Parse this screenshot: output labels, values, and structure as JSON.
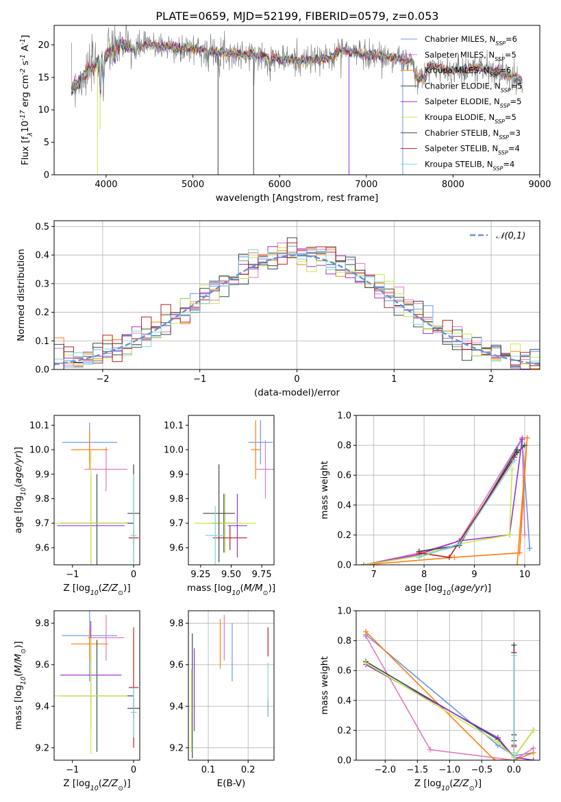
{
  "title": "PLATE=0659, MJD=52199, FIBERID=0579, z=0.053",
  "colors": [
    "#6495ed",
    "#e377c2",
    "#ff7f0e",
    "#2f4f4f",
    "#9932cc",
    "#c8e64c",
    "#404040",
    "#b22222",
    "#7dd4dc"
  ],
  "series_names": [
    "Chabrier MILES, N$_{SSP}$=6",
    "Salpeter MILES, N$_{SSP}$=5",
    "Kroupa MILES, N$_{SSP}$=6",
    "Chabrier ELODIE, N$_{SSP}$=5",
    "Salpeter ELODIE, N$_{SSP}$=5",
    "Kroupa ELODIE, N$_{SSP}$=5",
    "Chabrier STELIB, N$_{SSP}$=3",
    "Salpeter STELIB, N$_{SSP}$=4",
    "Kroupa STELIB, N$_{SSP}$=4"
  ],
  "chart_data": [
    {
      "id": "spectrum",
      "type": "line",
      "xlabel": "wavelength [Angstrom, rest frame]",
      "ylabel": "Flux [f$_\\lambda$10$^{-17}$ erg cm$^{-2}$ s$^{-1}$ A$^{-1}$]",
      "xlim": [
        3400,
        9000
      ],
      "ylim": [
        0,
        23
      ],
      "xticks": [
        4000,
        5000,
        6000,
        7000,
        8000,
        9000
      ],
      "yticks": [
        0,
        5,
        10,
        15,
        20
      ],
      "grid": false,
      "legend": "right",
      "data_range": [
        3600,
        8800
      ],
      "continuum": [
        [
          3600,
          13.5
        ],
        [
          3700,
          14.5
        ],
        [
          3800,
          16
        ],
        [
          3900,
          17.5
        ],
        [
          4000,
          18.5
        ],
        [
          4100,
          19.5
        ],
        [
          4200,
          20
        ],
        [
          4300,
          19.5
        ],
        [
          4400,
          19.8
        ],
        [
          4500,
          20
        ],
        [
          4700,
          19.7
        ],
        [
          5000,
          19.5
        ],
        [
          5200,
          19
        ],
        [
          5500,
          18.6
        ],
        [
          5800,
          18.3
        ],
        [
          6000,
          17.8
        ],
        [
          6300,
          17.5
        ],
        [
          6600,
          18
        ],
        [
          6700,
          19.3
        ],
        [
          6800,
          19
        ],
        [
          7000,
          18.6
        ],
        [
          7400,
          17.8
        ],
        [
          7600,
          17
        ],
        [
          8000,
          16
        ],
        [
          8300,
          16.5
        ],
        [
          8600,
          15.5
        ],
        [
          8800,
          14.5
        ]
      ],
      "absorption": [
        [
          3933,
          6
        ],
        [
          3968,
          5
        ],
        [
          4101,
          2
        ],
        [
          4340,
          2
        ],
        [
          4861,
          1.5
        ],
        [
          5175,
          2
        ],
        [
          5890,
          2
        ]
      ],
      "glitches": [
        [
          3900,
          0,
          5
        ],
        [
          3930,
          7,
          5
        ],
        [
          5290,
          0,
          6
        ],
        [
          5700,
          0,
          6
        ],
        [
          6800,
          0,
          4
        ],
        [
          7420,
          0,
          0
        ]
      ]
    },
    {
      "id": "residuals",
      "type": "histogram",
      "xlabel": "(data-model)/error",
      "ylabel": "Normed distribution",
      "xlim": [
        -2.5,
        2.5
      ],
      "ylim": [
        0,
        0.52
      ],
      "xticks": [
        -2,
        -1,
        0,
        1,
        2
      ],
      "yticks": [
        0.0,
        0.1,
        0.2,
        0.3,
        0.4,
        0.5
      ],
      "grid": true,
      "legend": "top-right",
      "bin_width": 0.1,
      "normal_label": "$\\mathcal{N}(0,1)$",
      "normal_color": "#6a8fd6"
    },
    {
      "id": "z-age",
      "type": "errorbar",
      "xlabel": "Z [log$_{10}$($Z/Z_\\odot$)]",
      "ylabel": "age  [log$_{10}$($age/yr$)]",
      "xlim": [
        -1.3,
        0.1
      ],
      "ylim": [
        9.53,
        10.14
      ],
      "xticks": [
        -1,
        0
      ],
      "yticks": [
        9.6,
        9.7,
        9.8,
        9.9,
        10.0,
        10.1
      ],
      "grid": false,
      "points": [
        [
          -0.72,
          10.03,
          0.45,
          0.08
        ],
        [
          -0.45,
          9.92,
          0.35,
          0.09
        ],
        [
          -0.72,
          10.0,
          0.3,
          0.08
        ],
        [
          -0.6,
          9.7,
          0.6,
          0.2
        ],
        [
          -0.7,
          9.69,
          0.55,
          0.2
        ],
        [
          -0.7,
          9.7,
          0.6,
          0.3
        ],
        [
          0.0,
          9.74,
          0.1,
          0.2
        ],
        [
          0.0,
          9.64,
          0.08,
          0.03
        ],
        [
          0.0,
          9.65,
          0.05,
          0.25
        ]
      ]
    },
    {
      "id": "mass-age",
      "type": "errorbar",
      "xlabel": "mass [log$_{10}$($M/M_\\odot$)]",
      "ylabel": "",
      "xlim": [
        9.15,
        9.85
      ],
      "ylim": [
        9.53,
        10.14
      ],
      "xticks": [
        9.25,
        9.5,
        9.75
      ],
      "yticks": [
        9.6,
        9.7,
        9.8,
        9.9,
        10.0,
        10.1
      ],
      "grid": false,
      "points": [
        [
          9.74,
          10.03,
          0.1,
          0.09
        ],
        [
          9.78,
          9.92,
          0.08,
          0.12
        ],
        [
          9.7,
          10.0,
          0.04,
          0.12
        ],
        [
          9.44,
          9.7,
          0.1,
          0.12
        ],
        [
          9.55,
          9.69,
          0.08,
          0.13
        ],
        [
          9.45,
          9.7,
          0.25,
          0.12
        ],
        [
          9.4,
          9.74,
          0.13,
          0.2
        ],
        [
          9.49,
          9.64,
          0.14,
          0.05
        ],
        [
          9.37,
          9.65,
          0.08,
          0.12
        ]
      ]
    },
    {
      "id": "age-weight",
      "type": "line",
      "xlabel": "age  [log$_{10}$($age/yr$)]",
      "ylabel": "mass weight",
      "xlim": [
        6.65,
        10.3
      ],
      "ylim": [
        0,
        1.0
      ],
      "xticks": [
        7,
        8,
        9,
        10
      ],
      "yticks": [
        0.0,
        0.2,
        0.4,
        0.6,
        0.8,
        1.0
      ],
      "grid": true,
      "series": [
        [
          [
            6.8,
            0.0
          ],
          [
            7.9,
            0.06
          ],
          [
            8.7,
            0.13
          ],
          [
            9.95,
            0.84
          ],
          [
            10.1,
            0.11
          ]
        ],
        [
          [
            6.8,
            0.0
          ],
          [
            7.9,
            0.08
          ],
          [
            8.7,
            0.16
          ],
          [
            9.95,
            0.85
          ],
          [
            10.0,
            0.2
          ]
        ],
        [
          [
            6.8,
            0.0
          ],
          [
            8.6,
            0.05
          ],
          [
            9.9,
            0.08
          ],
          [
            10.05,
            0.85
          ],
          [
            9.85,
            0.0
          ]
        ],
        [
          [
            6.8,
            0.0
          ],
          [
            7.9,
            0.06
          ],
          [
            8.7,
            0.14
          ],
          [
            9.85,
            0.75
          ],
          [
            10.0,
            0.8
          ]
        ],
        [
          [
            6.8,
            0.0
          ],
          [
            7.9,
            0.07
          ],
          [
            8.7,
            0.16
          ],
          [
            9.7,
            0.2
          ],
          [
            9.95,
            0.84
          ]
        ],
        [
          [
            6.8,
            0.0
          ],
          [
            7.9,
            0.06
          ],
          [
            8.7,
            0.14
          ],
          [
            9.7,
            0.2
          ],
          [
            9.75,
            0.64
          ]
        ],
        [
          [
            7.9,
            0.09
          ],
          [
            8.7,
            0.13
          ],
          [
            9.85,
            0.77
          ]
        ],
        [
          [
            7.9,
            0.08
          ],
          [
            8.5,
            0.05
          ],
          [
            9.8,
            0.72
          ]
        ],
        [
          [
            7.9,
            0.05
          ],
          [
            8.7,
            0.14
          ],
          [
            9.8,
            0.7
          ]
        ]
      ]
    },
    {
      "id": "z-mass",
      "type": "errorbar",
      "xlabel": "Z [log$_{10}$($Z/Z_\\odot$)]",
      "ylabel": "mass [log$_{10}$($M/M_\\odot$)]",
      "xlim": [
        -1.3,
        0.1
      ],
      "ylim": [
        9.14,
        9.86
      ],
      "xticks": [
        -1,
        0
      ],
      "yticks": [
        9.2,
        9.4,
        9.6,
        9.8
      ],
      "grid": false,
      "points": [
        [
          -0.72,
          9.74,
          0.45,
          0.22
        ],
        [
          -0.45,
          9.73,
          0.3,
          0.11
        ],
        [
          -0.72,
          9.7,
          0.3,
          0.08
        ],
        [
          -0.6,
          9.45,
          0.6,
          0.27
        ],
        [
          -0.7,
          9.55,
          0.5,
          0.26
        ],
        [
          -0.7,
          9.45,
          0.6,
          0.28
        ],
        [
          0.0,
          9.39,
          0.1,
          0.05
        ],
        [
          0.0,
          9.49,
          0.08,
          0.29
        ],
        [
          0.0,
          9.37,
          0.05,
          0.12
        ]
      ]
    },
    {
      "id": "ebv-mass",
      "type": "errorbar",
      "xlabel": "E(B-V)",
      "ylabel": "",
      "xlim": [
        0.05,
        0.265
      ],
      "ylim": [
        9.14,
        9.86
      ],
      "xticks": [
        0.1,
        0.2
      ],
      "yticks": [
        9.2,
        9.4,
        9.6,
        9.8
      ],
      "grid": true,
      "points": [
        [
          0.16,
          9.66,
          0,
          0.14
        ],
        [
          0.14,
          9.73,
          0,
          0.11
        ],
        [
          0.13,
          9.7,
          0,
          0.12
        ],
        [
          0.06,
          9.45,
          0,
          0.3
        ],
        [
          0.065,
          9.48,
          0,
          0.2
        ],
        [
          0.058,
          9.38,
          0,
          0.2
        ],
        [
          0.25,
          9.39,
          0,
          0.04
        ],
        [
          0.25,
          9.71,
          0,
          0.07
        ],
        [
          0.25,
          9.48,
          0,
          0.13
        ]
      ]
    },
    {
      "id": "z-weight",
      "type": "line",
      "xlabel": "Z [log$_{10}$($Z/Z_\\odot$)]",
      "ylabel": "mass weight",
      "xlim": [
        -2.45,
        0.4
      ],
      "ylim": [
        0,
        1.0
      ],
      "xticks": [
        -2.0,
        -1.5,
        -1.0,
        -0.5,
        0.0
      ],
      "yticks": [
        0.0,
        0.2,
        0.4,
        0.6,
        0.8,
        1.0
      ],
      "grid": true,
      "series": [
        [
          [
            -2.3,
            0.84
          ],
          [
            -0.25,
            0.1
          ],
          [
            0.0,
            0.03
          ],
          [
            0.3,
            0.05
          ]
        ],
        [
          [
            -2.3,
            0.83
          ],
          [
            -1.3,
            0.07
          ],
          [
            0.0,
            0.0
          ],
          [
            0.3,
            0.08
          ]
        ],
        [
          [
            -2.3,
            0.86
          ],
          [
            -0.3,
            0.0
          ],
          [
            0.0,
            0.0
          ],
          [
            0.3,
            0.05
          ]
        ],
        [
          [
            -2.3,
            0.66
          ],
          [
            -0.25,
            0.14
          ],
          [
            0.0,
            0.02
          ],
          [
            0.3,
            0.2
          ]
        ],
        [
          [
            -2.3,
            0.64
          ],
          [
            -0.25,
            0.15
          ],
          [
            0.0,
            0.02
          ],
          [
            0.3,
            0.0
          ]
        ],
        [
          [
            -2.3,
            0.65
          ],
          [
            -0.25,
            0.12
          ],
          [
            0.0,
            0.02
          ],
          [
            0.3,
            0.2
          ]
        ],
        [
          [
            0.0,
            0.77
          ],
          [
            0.0,
            0.17
          ],
          [
            0.0,
            0.13
          ]
        ],
        [
          [
            0.0,
            0.72
          ],
          [
            0.0,
            0.1
          ],
          [
            0.0,
            0.09
          ]
        ],
        [
          [
            0.0,
            0.7
          ],
          [
            0.0,
            0.05
          ],
          [
            0.0,
            0.0
          ]
        ]
      ]
    }
  ]
}
